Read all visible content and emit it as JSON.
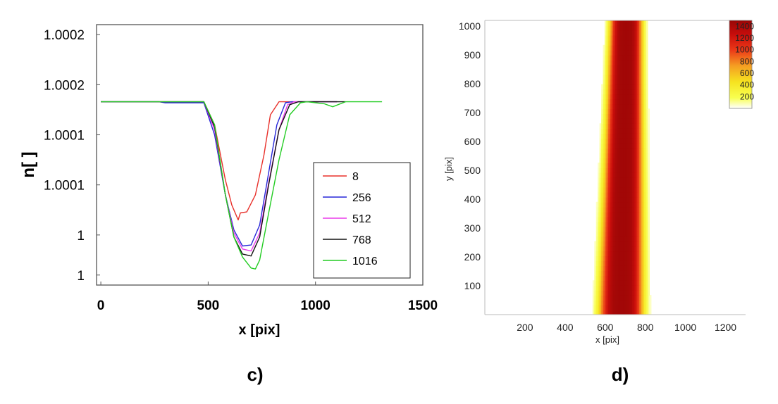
{
  "panel_labels": {
    "left": "c)",
    "right": "d)"
  },
  "chart_data": [
    {
      "type": "line",
      "panel": "c)",
      "xlabel": "x [pix]",
      "ylabel": "n[ ]",
      "xlim": [
        -20,
        1500
      ],
      "ylim": [
        0.99999,
        1.00025
      ],
      "x_ticks": [
        0,
        500,
        1000,
        1500
      ],
      "x_tick_labels": [
        "0",
        "500",
        "1000",
        "1500"
      ],
      "y_ticks": [
        1.00024,
        1.00019,
        1.00014,
        1.00009,
        1.00004,
        1.0
      ],
      "y_tick_labels": [
        "1.0002",
        "1.0002",
        "1.0001",
        "1.0001",
        "1",
        "1"
      ],
      "grid": false,
      "legend_position": "bottom-right",
      "series": [
        {
          "name": "8",
          "color": "#e8302a",
          "x": [
            0,
            480,
            530,
            580,
            610,
            640,
            650,
            680,
            720,
            760,
            790,
            830,
            1100
          ],
          "y": [
            1.000173,
            1.000173,
            1.00015,
            1.000095,
            1.00007,
            1.000055,
            1.000062,
            1.000063,
            1.00008,
            1.00012,
            1.00016,
            1.000173,
            1.000173
          ]
        },
        {
          "name": "256",
          "color": "#2727d8",
          "x": [
            0,
            270,
            300,
            480,
            530,
            580,
            620,
            660,
            700,
            740,
            780,
            820,
            860,
            890,
            930,
            1100
          ],
          "y": [
            1.000173,
            1.000173,
            1.000172,
            1.000172,
            1.00014,
            1.00008,
            1.000045,
            1.000029,
            1.00003,
            1.00005,
            1.0001,
            1.00015,
            1.000172,
            1.000173,
            1.000173,
            1.000173
          ]
        },
        {
          "name": "512",
          "color": "#ea3cea",
          "x": [
            0,
            480,
            530,
            580,
            620,
            660,
            700,
            740,
            780,
            830,
            870,
            900,
            1100
          ],
          "y": [
            1.000173,
            1.000173,
            1.000145,
            1.00008,
            1.000042,
            1.000026,
            1.000024,
            1.000042,
            1.00009,
            1.000145,
            1.00017,
            1.000173,
            1.000173
          ]
        },
        {
          "name": "768",
          "color": "#111111",
          "x": [
            0,
            480,
            530,
            580,
            620,
            660,
            700,
            740,
            780,
            830,
            880,
            920,
            1140
          ],
          "y": [
            1.000173,
            1.000173,
            1.000148,
            1.00008,
            1.000038,
            1.000021,
            1.000019,
            1.000038,
            1.000088,
            1.000145,
            1.00017,
            1.000173,
            1.000173
          ]
        },
        {
          "name": "1016",
          "color": "#22cc22",
          "x": [
            0,
            480,
            530,
            580,
            620,
            660,
            700,
            720,
            740,
            780,
            830,
            880,
            930,
            960,
            1040,
            1080,
            1140,
            1310
          ],
          "y": [
            1.000173,
            1.000173,
            1.00015,
            1.00008,
            1.000038,
            1.000018,
            1.000007,
            1.000006,
            1.000015,
            1.00006,
            1.000115,
            1.00016,
            1.000172,
            1.000173,
            1.000171,
            1.000168,
            1.000173,
            1.000173
          ]
        }
      ]
    },
    {
      "type": "heatmap",
      "panel": "d)",
      "xlabel": "x [pix]",
      "ylabel": "y [pix]",
      "xlim": [
        0,
        1300
      ],
      "ylim": [
        0,
        1020
      ],
      "x_ticks": [
        200,
        400,
        600,
        800,
        1000,
        1200
      ],
      "y_ticks": [
        100,
        200,
        300,
        400,
        500,
        600,
        700,
        800,
        900,
        1000
      ],
      "colorbar": {
        "ticks": [
          200,
          400,
          600,
          800,
          1000,
          1200,
          1400
        ],
        "range": [
          0,
          1500
        ],
        "colors": [
          "#ffffff",
          "#f8ff50",
          "#f6e320",
          "#f5a022",
          "#ec3a18",
          "#c80d0b",
          "#980606"
        ]
      },
      "band": {
        "center_bottom": 680,
        "center_top": 705,
        "half_width_bottom": 150,
        "half_width_top": 110,
        "peak": 1450
      }
    }
  ]
}
